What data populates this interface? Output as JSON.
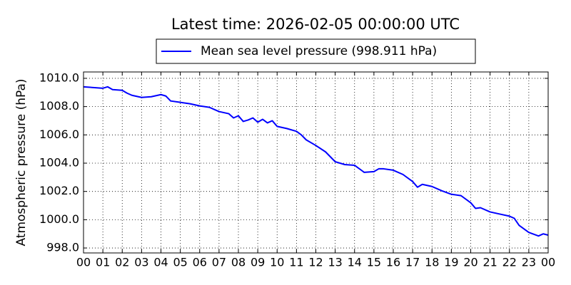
{
  "chart_data": {
    "type": "line",
    "title": "Latest time: 2026-02-05 00:00:00 UTC",
    "y_label": "Atmospheric pressure (hPa)",
    "legend": "top",
    "grid": true,
    "xlim": [
      0,
      24
    ],
    "xticks": [
      {
        "value": 0,
        "label": "00"
      },
      {
        "value": 1,
        "label": "01"
      },
      {
        "value": 2,
        "label": "02"
      },
      {
        "value": 3,
        "label": "03"
      },
      {
        "value": 4,
        "label": "04"
      },
      {
        "value": 5,
        "label": "05"
      },
      {
        "value": 6,
        "label": "06"
      },
      {
        "value": 7,
        "label": "07"
      },
      {
        "value": 8,
        "label": "08"
      },
      {
        "value": 9,
        "label": "09"
      },
      {
        "value": 10,
        "label": "10"
      },
      {
        "value": 11,
        "label": "11"
      },
      {
        "value": 12,
        "label": "12"
      },
      {
        "value": 13,
        "label": "13"
      },
      {
        "value": 14,
        "label": "14"
      },
      {
        "value": 15,
        "label": "15"
      },
      {
        "value": 16,
        "label": "16"
      },
      {
        "value": 17,
        "label": "17"
      },
      {
        "value": 18,
        "label": "18"
      },
      {
        "value": 19,
        "label": "19"
      },
      {
        "value": 20,
        "label": "20"
      },
      {
        "value": 21,
        "label": "21"
      },
      {
        "value": 22,
        "label": "22"
      },
      {
        "value": 23,
        "label": "23"
      },
      {
        "value": 24,
        "label": "00"
      }
    ],
    "ylim": [
      997.65,
      1010.45
    ],
    "yticks": [
      {
        "value": 998,
        "label": "998.0"
      },
      {
        "value": 1000,
        "label": "1000.0"
      },
      {
        "value": 1002,
        "label": "1002.0"
      },
      {
        "value": 1004,
        "label": "1004.0"
      },
      {
        "value": 1006,
        "label": "1006.0"
      },
      {
        "value": 1008,
        "label": "1008.0"
      },
      {
        "value": 1010,
        "label": "1010.0"
      }
    ],
    "x": [
      0,
      0.5,
      1,
      1.25,
      1.5,
      2,
      2.25,
      2.5,
      3,
      3.5,
      4,
      4.25,
      4.5,
      5,
      5.5,
      6,
      6.5,
      7,
      7.5,
      7.75,
      8,
      8.25,
      8.5,
      8.75,
      9,
      9.25,
      9.5,
      9.75,
      10,
      10.5,
      11,
      11.25,
      11.5,
      12,
      12.5,
      13,
      13.5,
      14,
      14.5,
      15,
      15.25,
      15.5,
      16,
      16.5,
      17,
      17.25,
      17.5,
      18,
      18.5,
      19,
      19.5,
      20,
      20.25,
      20.5,
      21,
      21.5,
      22,
      22.25,
      22.5,
      23,
      23.5,
      23.75,
      24
    ],
    "series": [
      {
        "name": "Mean sea level pressure (998.911 hPa)",
        "color": "#0000ff",
        "values": [
          1009.4,
          1009.35,
          1009.3,
          1009.4,
          1009.2,
          1009.15,
          1008.95,
          1008.8,
          1008.65,
          1008.7,
          1008.85,
          1008.75,
          1008.4,
          1008.3,
          1008.2,
          1008.05,
          1007.95,
          1007.65,
          1007.5,
          1007.2,
          1007.35,
          1006.95,
          1007.05,
          1007.2,
          1006.9,
          1007.1,
          1006.85,
          1007.0,
          1006.6,
          1006.45,
          1006.25,
          1006.0,
          1005.65,
          1005.25,
          1004.8,
          1004.1,
          1003.9,
          1003.85,
          1003.35,
          1003.4,
          1003.6,
          1003.6,
          1003.5,
          1003.2,
          1002.7,
          1002.3,
          1002.5,
          1002.35,
          1002.05,
          1001.8,
          1001.7,
          1001.2,
          1000.8,
          1000.85,
          1000.55,
          1000.4,
          1000.25,
          1000.1,
          999.6,
          999.1,
          998.85,
          999.0,
          998.911
        ]
      }
    ]
  }
}
